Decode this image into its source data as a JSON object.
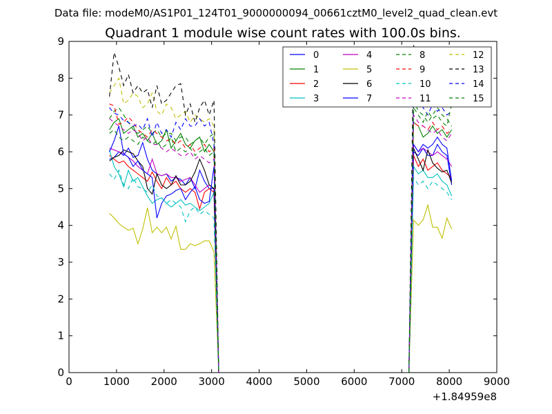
{
  "chart_data": {
    "type": "line",
    "suptitle": "Data file: modeM0/AS1P01_124T01_9000000094_00661cztM0_level2_quad_clean.evt",
    "title": "Quadrant 1 module wise count rates with 100.0s bins.",
    "xlabel": "",
    "ylabel": "",
    "xlim": [
      0,
      9000
    ],
    "ylim": [
      0,
      9
    ],
    "x_ticks": [
      0,
      1000,
      2000,
      3000,
      4000,
      5000,
      6000,
      7000,
      8000,
      9000
    ],
    "x_tick_labels": [
      "0",
      "1000",
      "2000",
      "3000",
      "4000",
      "5000",
      "6000",
      "7000",
      "8000",
      "9000"
    ],
    "y_ticks": [
      0,
      1,
      2,
      3,
      4,
      5,
      6,
      7,
      8,
      9
    ],
    "y_tick_labels": [
      "0",
      "1",
      "2",
      "3",
      "4",
      "5",
      "6",
      "7",
      "8",
      "9"
    ],
    "x_offset_label": "+1.84959e8",
    "grid": false,
    "legend_position": "top-right",
    "legend_columns": 4,
    "x": [
      850,
      950,
      1050,
      1150,
      1250,
      1350,
      1450,
      1550,
      1650,
      1750,
      1850,
      1950,
      2050,
      2150,
      2250,
      2350,
      2450,
      2550,
      2650,
      2750,
      2850,
      2950,
      3050,
      3150,
      3250,
      3350,
      3450,
      3550,
      3650,
      3750,
      3850,
      3950,
      4050,
      4150,
      4250,
      4350,
      4450,
      4550,
      4650,
      4750,
      4850,
      4950,
      5050,
      5150,
      5250,
      5350,
      5450,
      5550,
      5650,
      5750,
      5850,
      5950,
      6050,
      6150,
      6250,
      6350,
      6450,
      6550,
      6650,
      6750,
      6850,
      6950,
      7050,
      7150,
      7250,
      7350,
      7450,
      7550,
      7650,
      7750,
      7850,
      7950,
      8050
    ],
    "series": [
      {
        "name": "0",
        "color": "#0000ff",
        "style": "solid",
        "active": [
          5.8,
          5.85,
          6.0,
          5.9,
          6.1,
          5.85,
          5.9,
          6.25,
          5.8,
          5.5,
          5.4,
          5.35,
          5.4,
          5.2,
          5.3,
          5.25,
          5.1,
          5.3,
          5.0,
          5.5,
          5.2,
          5.0,
          5.0
        ],
        "rise": [
          6.0,
          5.9,
          6.1,
          5.9,
          5.9,
          6.2,
          6.0,
          5.9,
          5.1
        ]
      },
      {
        "name": "1",
        "color": "#008000",
        "style": "solid",
        "active": [
          6.6,
          6.8,
          6.9,
          6.5,
          6.6,
          6.7,
          6.4,
          6.5,
          6.3,
          6.5,
          6.2,
          6.3,
          6.6,
          6.1,
          6.3,
          6.5,
          6.2,
          6.1,
          6.3,
          6.4,
          6.0,
          6.2,
          6.0
        ],
        "rise": [
          6.8,
          6.7,
          6.4,
          6.5,
          6.7,
          6.5,
          6.6,
          6.4,
          6.6
        ]
      },
      {
        "name": "2",
        "color": "#ff0000",
        "style": "solid",
        "active": [
          5.9,
          5.8,
          5.7,
          5.75,
          5.6,
          5.5,
          5.4,
          5.3,
          5.2,
          5.45,
          5.2,
          5.0,
          5.3,
          5.1,
          5.2,
          5.0,
          4.9,
          5.0,
          4.9,
          4.45,
          4.9,
          5.0,
          4.9
        ],
        "rise": [
          5.9,
          5.6,
          5.8,
          5.5,
          5.6,
          5.7,
          5.5,
          5.4,
          5.3
        ]
      },
      {
        "name": "3",
        "color": "#00bfbf",
        "style": "solid",
        "active": [
          6.05,
          5.6,
          5.4,
          5.05,
          5.5,
          5.2,
          5.3,
          5.05,
          4.8,
          4.6,
          4.7,
          4.75,
          4.6,
          4.5,
          4.6,
          4.7,
          4.55,
          4.6,
          4.5,
          4.4,
          4.5,
          4.6,
          4.9
        ],
        "rise": [
          5.6,
          5.4,
          5.5,
          5.3,
          5.3,
          5.4,
          5.2,
          5.1,
          4.8
        ]
      },
      {
        "name": "4",
        "color": "#bf00bf",
        "style": "solid",
        "active": [
          6.1,
          6.05,
          6.0,
          5.95,
          5.85,
          5.75,
          5.6,
          5.5,
          5.4,
          5.8,
          5.4,
          5.35,
          5.4,
          5.3,
          5.3,
          5.2,
          5.25,
          5.3,
          5.1,
          4.9,
          5.0,
          5.1,
          5.0
        ],
        "rise": [
          6.2,
          6.0,
          6.1,
          6.0,
          5.9,
          6.0,
          5.9,
          5.8,
          5.6
        ]
      },
      {
        "name": "5",
        "color": "#bfbf00",
        "style": "solid",
        "active": [
          4.33,
          4.2,
          4.05,
          3.95,
          3.87,
          3.92,
          3.5,
          3.9,
          4.48,
          3.8,
          3.95,
          3.8,
          3.95,
          3.63,
          3.98,
          3.35,
          3.35,
          3.5,
          3.45,
          3.5,
          3.58,
          3.58,
          3.28
        ],
        "rise": [
          4.15,
          4.0,
          4.15,
          4.55,
          3.95,
          3.95,
          3.65,
          4.2,
          3.9
        ]
      },
      {
        "name": "6",
        "color": "#000000",
        "style": "solid",
        "active": [
          5.75,
          5.85,
          5.9,
          6.05,
          6.0,
          5.95,
          5.75,
          5.6,
          5.0,
          4.85,
          5.4,
          5.1,
          5.0,
          5.1,
          5.35,
          5.1,
          5.1,
          5.2,
          5.45,
          5.8,
          5.5,
          5.1,
          5.0
        ],
        "rise": [
          6.1,
          5.8,
          5.5,
          6.05,
          5.7,
          5.55,
          5.45,
          5.5,
          5.15
        ]
      },
      {
        "name": "7",
        "color": "#0000ff",
        "style": "solid",
        "active": [
          6.0,
          6.3,
          6.7,
          5.95,
          5.85,
          5.6,
          5.75,
          5.5,
          5.4,
          5.3,
          4.2,
          4.6,
          4.8,
          4.85,
          4.95,
          5.0,
          4.7,
          4.9,
          5.05,
          4.7,
          4.6,
          4.65,
          5.6
        ],
        "rise": [
          6.2,
          6.0,
          6.2,
          6.1,
          6.2,
          6.4,
          6.2,
          6.1,
          5.2
        ]
      },
      {
        "name": "8",
        "color": "#008000",
        "style": "dashed",
        "active": [
          6.9,
          7.1,
          7.2,
          7.0,
          6.8,
          6.6,
          6.5,
          6.6,
          6.7,
          6.5,
          6.6,
          6.4,
          6.5,
          6.5,
          6.3,
          6.4,
          6.4,
          6.2,
          6.3,
          6.4,
          6.2,
          6.4,
          6.5
        ],
        "rise": [
          7.4,
          7.1,
          7.0,
          6.8,
          7.0,
          7.2,
          7.0,
          6.9,
          6.7
        ]
      },
      {
        "name": "9",
        "color": "#ff0000",
        "style": "dashed",
        "active": [
          7.3,
          7.25,
          6.75,
          6.8,
          6.95,
          6.8,
          6.6,
          6.5,
          6.4,
          6.6,
          6.5,
          6.4,
          6.3,
          6.35,
          6.2,
          6.3,
          6.1,
          6.2,
          6.0,
          6.1,
          6.2,
          6.0,
          6.1
        ],
        "rise": [
          6.8,
          6.7,
          6.7,
          6.6,
          6.8,
          6.6,
          6.7,
          6.5,
          6.6
        ]
      },
      {
        "name": "10",
        "color": "#00bfbf",
        "style": "dashed",
        "active": [
          5.4,
          5.25,
          5.5,
          5.1,
          5.0,
          5.3,
          5.05,
          5.0,
          4.9,
          5.1,
          4.8,
          4.75,
          4.6,
          4.7,
          4.6,
          4.5,
          4.1,
          4.4,
          4.5,
          4.3,
          4.4,
          4.3,
          4.2
        ],
        "rise": [
          5.3,
          5.1,
          5.2,
          5.0,
          5.2,
          5.1,
          5.0,
          4.9,
          4.7
        ]
      },
      {
        "name": "11",
        "color": "#bf00bf",
        "style": "dashed",
        "active": [
          6.9,
          6.8,
          6.7,
          6.6,
          6.5,
          6.6,
          6.5,
          6.3,
          6.4,
          6.2,
          6.2,
          6.1,
          6.0,
          6.1,
          6.0,
          5.9,
          5.9,
          6.0,
          5.8,
          5.9,
          5.8,
          5.7,
          5.8
        ],
        "rise": [
          7.0,
          6.8,
          6.7,
          6.6,
          6.5,
          6.6,
          6.4,
          6.3,
          6.5
        ]
      },
      {
        "name": "12",
        "color": "#bfbf00",
        "style": "dashed",
        "active": [
          7.6,
          7.8,
          8.0,
          7.3,
          7.4,
          7.6,
          7.5,
          7.2,
          7.3,
          7.6,
          7.1,
          7.0,
          7.3,
          7.2,
          6.9,
          7.0,
          7.1,
          6.8,
          7.0,
          6.9,
          6.8,
          6.9,
          6.7
        ],
        "rise": [
          8.0,
          8.5,
          7.8,
          8.1,
          7.7,
          7.6,
          7.9,
          7.5,
          7.2
        ]
      },
      {
        "name": "13",
        "color": "#000000",
        "style": "dashed",
        "active": [
          7.5,
          8.7,
          8.3,
          7.8,
          8.1,
          7.6,
          7.8,
          7.6,
          7.7,
          7.2,
          7.8,
          7.3,
          7.4,
          7.6,
          7.8,
          7.85,
          7.0,
          7.3,
          6.8,
          7.2,
          7.4,
          7.0,
          7.4
        ],
        "rise": [
          8.9,
          8.3,
          7.7,
          8.1,
          8.0,
          8.2,
          7.8,
          7.6,
          7.3
        ]
      },
      {
        "name": "14",
        "color": "#0000ff",
        "style": "dashed",
        "active": [
          7.2,
          7.05,
          7.0,
          6.85,
          6.8,
          6.7,
          6.75,
          6.6,
          6.9,
          6.4,
          6.8,
          6.5,
          6.6,
          6.4,
          6.8,
          6.6,
          6.9,
          6.7,
          6.7,
          6.9,
          6.7,
          6.8,
          6.2
        ],
        "rise": [
          7.6,
          7.4,
          7.2,
          7.0,
          7.3,
          7.1,
          7.2,
          7.0,
          7.1
        ]
      },
      {
        "name": "15",
        "color": "#008000",
        "style": "dashed",
        "active": [
          6.5,
          6.6,
          6.4,
          6.3,
          6.4,
          6.3,
          6.2,
          6.4,
          6.3,
          6.2,
          6.3,
          6.1,
          6.2,
          6.4,
          6.0,
          6.1,
          6.0,
          6.1,
          5.9,
          6.0,
          6.1,
          5.9,
          6.0
        ],
        "rise": [
          7.2,
          7.0,
          6.8,
          7.1,
          6.9,
          7.0,
          6.8,
          6.7,
          7.3
        ]
      }
    ]
  }
}
